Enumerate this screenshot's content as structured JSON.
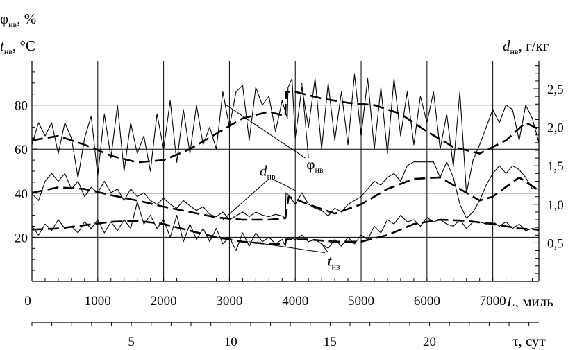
{
  "chart_data": {
    "type": "line",
    "x_axis": {
      "label_symbol": "L",
      "label_unit": ", миль",
      "range": [
        0,
        7700
      ],
      "ticks": [
        0,
        1000,
        2000,
        3000,
        4000,
        5000,
        6000,
        7000
      ],
      "tick_labels": [
        "0",
        "1000",
        "2000",
        "3000",
        "4000",
        "5000",
        "6000",
        "7000"
      ]
    },
    "time_axis": {
      "label": "τ, сут",
      "range": [
        0,
        25.5
      ],
      "labeled_ticks": [
        5,
        10,
        15,
        20
      ],
      "tick_labels": [
        "5",
        "10",
        "15",
        "20"
      ],
      "minor_step": 1
    },
    "y_left": {
      "label_phi": "φ",
      "label_phi_sub": "нв",
      "label_phi_unit": ", %",
      "label_t": "t",
      "label_t_sub": "нв",
      "label_t_unit": ", °C",
      "range": [
        0,
        100
      ],
      "ticks": [
        20,
        40,
        60,
        80
      ],
      "tick_labels": [
        "20",
        "40",
        "60",
        "80"
      ]
    },
    "y_right": {
      "label_d": "d",
      "label_d_sub": "нв",
      "label_d_unit": ", г/кг",
      "range": [
        0,
        2.86
      ],
      "ticks": [
        0.5,
        1.0,
        1.5,
        2.0,
        2.5
      ],
      "tick_labels": [
        "0,5",
        "1,0",
        "1,5",
        "2,0",
        "2,5"
      ]
    },
    "grid": true,
    "annotations": {
      "phi": {
        "main": "φ",
        "sub": "нв"
      },
      "d": {
        "main": "d",
        "sub": "нв"
      },
      "t": {
        "main": "t",
        "sub": "нв"
      }
    },
    "series": [
      {
        "style": "solid",
        "axis": "left",
        "x": [
          0,
          100,
          200,
          300,
          400,
          500,
          600,
          700,
          800,
          900,
          1000,
          1100,
          1200,
          1300,
          1400,
          1500,
          1600,
          1700,
          1800,
          1900,
          2000,
          2100,
          2200,
          2300,
          2400,
          2500,
          2600,
          2700,
          2800,
          2900,
          3000,
          3100,
          3200,
          3300,
          3400,
          3500,
          3600,
          3700,
          3800,
          3880,
          3890,
          3950,
          4000,
          4100,
          4200,
          4300,
          4400,
          4500,
          4600,
          4700,
          4800,
          4900,
          5000,
          5100,
          5200,
          5300,
          5400,
          5500,
          5600,
          5700,
          5800,
          5900,
          6000,
          6100,
          6200,
          6300,
          6400,
          6500,
          6600,
          6700,
          6800,
          6900,
          7000,
          7100,
          7200,
          7300,
          7400,
          7500,
          7600,
          7700
        ],
        "y": [
          62,
          72,
          66,
          72,
          58,
          72,
          65,
          47,
          65,
          75,
          48,
          76,
          56,
          80,
          50,
          72,
          58,
          66,
          50,
          76,
          60,
          82,
          54,
          78,
          58,
          80,
          62,
          70,
          60,
          86,
          70,
          86,
          89,
          64,
          88,
          80,
          84,
          68,
          82,
          74,
          88,
          92,
          65,
          88,
          70,
          92,
          60,
          90,
          64,
          86,
          62,
          94,
          66,
          92,
          60,
          88,
          58,
          92,
          66,
          86,
          62,
          84,
          72,
          86,
          60,
          76,
          52,
          86,
          40,
          55,
          62,
          70,
          78,
          72,
          80,
          78,
          64,
          80,
          74,
          63
        ]
      },
      {
        "style": "dashed",
        "axis": "left",
        "x": [
          0,
          400,
          800,
          1200,
          1600,
          2000,
          2400,
          2800,
          3200,
          3600,
          3850,
          3860,
          4000,
          4400,
          4800,
          5200,
          5600,
          6000,
          6400,
          6800,
          7200,
          7500,
          7700
        ],
        "y": [
          64,
          66,
          62,
          57,
          54,
          55,
          60,
          67,
          74,
          77,
          75,
          86,
          86,
          83,
          81,
          80,
          76,
          68,
          61,
          58,
          64,
          72,
          69
        ]
      },
      {
        "style": "solid",
        "axis": "right",
        "x": [
          0,
          100,
          200,
          300,
          400,
          500,
          600,
          700,
          800,
          900,
          1000,
          1100,
          1200,
          1300,
          1400,
          1500,
          1600,
          1700,
          1800,
          1900,
          2000,
          2100,
          2200,
          2300,
          2400,
          2500,
          2600,
          2700,
          2800,
          2900,
          3000,
          3100,
          3200,
          3300,
          3400,
          3500,
          3600,
          3700,
          3800,
          3850,
          3860,
          3900,
          4000,
          4100,
          4200,
          4300,
          4400,
          4500,
          4600,
          4700,
          4800,
          4900,
          5000,
          5100,
          5200,
          5300,
          5400,
          5500,
          5600,
          5700,
          5800,
          5900,
          6000,
          6100,
          6200,
          6300,
          6400,
          6500,
          6600,
          6700,
          6800,
          6900,
          7000,
          7100,
          7200,
          7300,
          7400,
          7500,
          7600,
          7700
        ],
        "y": [
          1.14,
          1.05,
          1.3,
          1.4,
          1.3,
          1.4,
          1.2,
          1.3,
          1.1,
          1.22,
          1.15,
          1.3,
          1.15,
          1.2,
          1.05,
          1.2,
          1.1,
          1.15,
          1.05,
          1.0,
          1.08,
          1.0,
          0.95,
          1.05,
          0.98,
          0.92,
          0.97,
          0.87,
          0.84,
          0.9,
          0.8,
          0.85,
          0.9,
          0.84,
          0.9,
          0.86,
          0.84,
          0.87,
          0.85,
          0.82,
          1.15,
          1.12,
          1.0,
          1.15,
          1.0,
          0.95,
          0.92,
          0.85,
          0.95,
          0.9,
          1.0,
          1.05,
          1.1,
          1.2,
          1.3,
          1.25,
          1.35,
          1.4,
          1.3,
          1.5,
          1.55,
          1.55,
          1.55,
          1.55,
          1.35,
          1.55,
          1.35,
          1.0,
          0.82,
          0.9,
          1.05,
          1.25,
          1.4,
          1.5,
          1.4,
          1.5,
          1.45,
          1.35,
          1.2,
          1.2
        ]
      },
      {
        "style": "dashed",
        "axis": "right",
        "x": [
          0,
          400,
          800,
          1200,
          1600,
          2000,
          2400,
          2800,
          3200,
          3600,
          3850,
          3900,
          4200,
          4600,
          5000,
          5400,
          5800,
          6200,
          6600,
          6800,
          7000,
          7400,
          7700
        ],
        "y": [
          1.15,
          1.22,
          1.2,
          1.12,
          1.05,
          0.97,
          0.9,
          0.83,
          0.8,
          0.8,
          0.82,
          1.1,
          1.0,
          0.88,
          1.0,
          1.2,
          1.33,
          1.35,
          1.15,
          1.05,
          1.1,
          1.35,
          1.18
        ]
      },
      {
        "style": "solid",
        "axis": "left",
        "x": [
          0,
          100,
          200,
          300,
          400,
          500,
          600,
          700,
          800,
          900,
          1000,
          1100,
          1200,
          1300,
          1400,
          1500,
          1600,
          1700,
          1800,
          1900,
          2000,
          2100,
          2200,
          2300,
          2400,
          2500,
          2600,
          2700,
          2800,
          2900,
          3000,
          3100,
          3200,
          3300,
          3400,
          3500,
          3600,
          3700,
          3800,
          3850,
          3860,
          3900,
          4000,
          4100,
          4200,
          4300,
          4400,
          4500,
          4600,
          4700,
          4800,
          4900,
          5000,
          5100,
          5200,
          5300,
          5400,
          5500,
          5600,
          5700,
          5800,
          5900,
          6000,
          6100,
          6200,
          6300,
          6400,
          6500,
          6600,
          6700,
          6800,
          6900,
          7000,
          7100,
          7200,
          7300,
          7400,
          7500,
          7600,
          7700
        ],
        "y": [
          25,
          21,
          26,
          23,
          28,
          24,
          25,
          22,
          27,
          24,
          28,
          22,
          27,
          23,
          28,
          24,
          36,
          26,
          30,
          24,
          28,
          20,
          30,
          18,
          26,
          19,
          24,
          18,
          24,
          17,
          20,
          14,
          22,
          16,
          22,
          18,
          20,
          17,
          19,
          16,
          19,
          20,
          19,
          21,
          18,
          19,
          17,
          15,
          19,
          16,
          20,
          17,
          21,
          19,
          25,
          22,
          28,
          26,
          30,
          27,
          28,
          25,
          29,
          27,
          28,
          26,
          25,
          28,
          24,
          27,
          27,
          26,
          27,
          25,
          27,
          24,
          26,
          23,
          24,
          23
        ]
      },
      {
        "style": "dashed",
        "axis": "left",
        "x": [
          0,
          400,
          800,
          1200,
          1600,
          2000,
          2400,
          2800,
          3200,
          3600,
          3850,
          3860,
          4200,
          4600,
          5000,
          5400,
          5800,
          6200,
          6600,
          7000,
          7400,
          7700
        ],
        "y": [
          23.5,
          24,
          25.5,
          27,
          27.5,
          26,
          23,
          20,
          18,
          17,
          17,
          19,
          19,
          18,
          18,
          21,
          26,
          28,
          27.5,
          26,
          24,
          23.5
        ]
      }
    ]
  }
}
